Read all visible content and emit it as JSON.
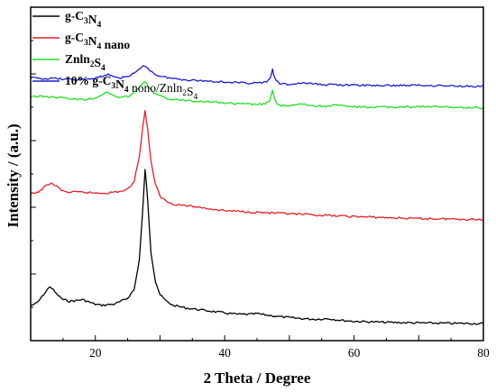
{
  "chart_data": {
    "type": "line",
    "xlabel": "2 Theta / Degree",
    "ylabel": "Intensity / (a.u.)",
    "xlim": [
      10,
      80
    ],
    "ylim": [
      0,
      100
    ],
    "x_ticks": [
      20,
      40,
      60,
      80
    ],
    "y_ticks_labeled": false,
    "legend_position": "top-left",
    "grid": false,
    "series": [
      {
        "name": "g-C3N4",
        "legend_parts": [
          {
            "t": "g-C"
          },
          {
            "t": "3",
            "sub": true
          },
          {
            "t": "N"
          },
          {
            "t": "4",
            "sub": true
          }
        ],
        "color": "#000000",
        "points": [
          [
            10,
            10.5
          ],
          [
            11,
            11.3
          ],
          [
            12,
            13.8
          ],
          [
            13,
            16.3
          ],
          [
            14,
            14.0
          ],
          [
            15,
            12.3
          ],
          [
            16,
            11.8
          ],
          [
            17,
            12.0
          ],
          [
            18,
            12.3
          ],
          [
            19,
            11.6
          ],
          [
            20,
            10.9
          ],
          [
            21,
            10.6
          ],
          [
            22,
            10.8
          ],
          [
            23,
            11.0
          ],
          [
            24,
            11.8
          ],
          [
            25,
            12.8
          ],
          [
            26,
            15.3
          ],
          [
            26.8,
            24.3
          ],
          [
            27.3,
            38.3
          ],
          [
            27.7,
            51.5
          ],
          [
            28.1,
            41.8
          ],
          [
            28.6,
            26.5
          ],
          [
            29.3,
            17.8
          ],
          [
            30,
            13.8
          ],
          [
            31,
            11.8
          ],
          [
            32,
            10.6
          ],
          [
            34,
            9.8
          ],
          [
            36,
            9.3
          ],
          [
            38,
            8.8
          ],
          [
            40,
            8.3
          ],
          [
            42,
            7.9
          ],
          [
            44,
            7.9
          ],
          [
            45,
            8.1
          ],
          [
            46,
            7.8
          ],
          [
            48,
            7.3
          ],
          [
            50,
            6.9
          ],
          [
            52,
            6.6
          ],
          [
            54,
            6.4
          ],
          [
            56,
            6.6
          ],
          [
            58,
            6.1
          ],
          [
            60,
            5.8
          ],
          [
            65,
            5.5
          ],
          [
            70,
            5.3
          ],
          [
            75,
            5.2
          ],
          [
            80,
            5.1
          ]
        ]
      },
      {
        "name": "g-C3N4 nano",
        "legend_parts": [
          {
            "t": "g-C"
          },
          {
            "t": "3",
            "sub": true
          },
          {
            "t": "N"
          },
          {
            "t": "4",
            "sub": true
          },
          {
            "t": " nano"
          }
        ],
        "color": "#e0202a",
        "points": [
          [
            10,
            44.0
          ],
          [
            11,
            44.3
          ],
          [
            12,
            45.8
          ],
          [
            13,
            47.3
          ],
          [
            14,
            46.3
          ],
          [
            15,
            44.8
          ],
          [
            16,
            44.5
          ],
          [
            18,
            44.5
          ],
          [
            20,
            44.3
          ],
          [
            22,
            44.3
          ],
          [
            24,
            44.8
          ],
          [
            25,
            45.3
          ],
          [
            26,
            47.8
          ],
          [
            26.8,
            55.3
          ],
          [
            27.3,
            63.8
          ],
          [
            27.7,
            68.8
          ],
          [
            28.1,
            63.3
          ],
          [
            28.6,
            53.8
          ],
          [
            29.3,
            46.8
          ],
          [
            30,
            43.3
          ],
          [
            31,
            41.8
          ],
          [
            32,
            41.0
          ],
          [
            34,
            40.5
          ],
          [
            36,
            40.0
          ],
          [
            38,
            39.5
          ],
          [
            40,
            39.0
          ],
          [
            42,
            38.8
          ],
          [
            45,
            38.5
          ],
          [
            50,
            38.0
          ],
          [
            55,
            37.6
          ],
          [
            60,
            37.2
          ],
          [
            65,
            36.9
          ],
          [
            70,
            36.6
          ],
          [
            75,
            36.5
          ],
          [
            80,
            36.3
          ]
        ]
      },
      {
        "name": "Znln2S4",
        "legend_parts": [
          {
            "t": "Znln"
          },
          {
            "t": "2",
            "sub": true
          },
          {
            "t": "S"
          },
          {
            "t": "4",
            "sub": true
          }
        ],
        "color": "#22dd22",
        "points": [
          [
            10,
            73.3
          ],
          [
            12,
            73.2
          ],
          [
            14,
            73.0
          ],
          [
            16,
            72.6
          ],
          [
            18,
            72.3
          ],
          [
            20,
            72.8
          ],
          [
            21,
            73.8
          ],
          [
            22,
            74.5
          ],
          [
            23,
            73.3
          ],
          [
            24,
            72.8
          ],
          [
            25,
            73.3
          ],
          [
            26,
            74.3
          ],
          [
            27,
            76.3
          ],
          [
            27.6,
            77.8
          ],
          [
            28.2,
            76.3
          ],
          [
            29,
            74.3
          ],
          [
            30,
            73.3
          ],
          [
            32,
            72.3
          ],
          [
            35,
            72.0
          ],
          [
            38,
            71.6
          ],
          [
            40,
            71.3
          ],
          [
            42,
            71.0
          ],
          [
            44,
            70.9
          ],
          [
            46,
            70.9
          ],
          [
            47,
            71.8
          ],
          [
            47.4,
            75.0
          ],
          [
            47.8,
            71.8
          ],
          [
            48.5,
            70.6
          ],
          [
            50,
            70.3
          ],
          [
            52,
            71.0
          ],
          [
            53,
            70.6
          ],
          [
            55,
            70.3
          ],
          [
            57,
            70.6
          ],
          [
            60,
            70.1
          ],
          [
            65,
            70.0
          ],
          [
            70,
            70.2
          ],
          [
            75,
            70.0
          ],
          [
            80,
            69.8
          ]
        ]
      },
      {
        "name": "10% g-C3N4 nono/Znln2S4",
        "legend_parts": [
          {
            "t": "10% g-C"
          },
          {
            "t": "3",
            "sub": true
          },
          {
            "t": "N"
          },
          {
            "t": "4",
            "sub": true
          },
          {
            "t": " nono/Znln",
            "plain": true
          },
          {
            "t": "2",
            "sub": true,
            "plain": true
          },
          {
            "t": "S",
            "plain": true
          },
          {
            "t": "4",
            "sub": true,
            "plain": true
          }
        ],
        "color": "#1a1acc",
        "points": [
          [
            10,
            78.8
          ],
          [
            12,
            78.6
          ],
          [
            14,
            78.6
          ],
          [
            16,
            78.3
          ],
          [
            18,
            78.3
          ],
          [
            20,
            78.6
          ],
          [
            21,
            79.3
          ],
          [
            22,
            79.8
          ],
          [
            23,
            79.1
          ],
          [
            24,
            78.8
          ],
          [
            25,
            79.3
          ],
          [
            26,
            80.1
          ],
          [
            27,
            81.6
          ],
          [
            27.6,
            82.6
          ],
          [
            28.2,
            81.6
          ],
          [
            29,
            80.1
          ],
          [
            30,
            79.3
          ],
          [
            32,
            78.6
          ],
          [
            35,
            78.1
          ],
          [
            38,
            77.8
          ],
          [
            40,
            77.6
          ],
          [
            42,
            77.3
          ],
          [
            44,
            77.3
          ],
          [
            46,
            77.3
          ],
          [
            47,
            78.3
          ],
          [
            47.4,
            81.3
          ],
          [
            47.8,
            78.3
          ],
          [
            48.5,
            77.1
          ],
          [
            50,
            76.8
          ],
          [
            52,
            77.3
          ],
          [
            53,
            77.1
          ],
          [
            55,
            76.8
          ],
          [
            57,
            76.8
          ],
          [
            60,
            76.6
          ],
          [
            65,
            76.5
          ],
          [
            70,
            76.6
          ],
          [
            75,
            76.4
          ],
          [
            80,
            76.3
          ]
        ]
      }
    ]
  }
}
